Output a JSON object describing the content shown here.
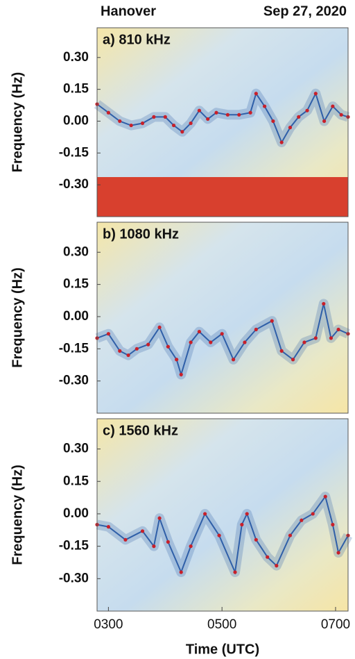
{
  "header": {
    "location": "Hanover",
    "date": "Sep 27, 2020"
  },
  "chart_data": [
    {
      "type": "line",
      "title": "a) 810 kHz",
      "ylabel": "Frequency (Hz)",
      "x": [
        2.8,
        3.0,
        3.2,
        3.4,
        3.6,
        3.8,
        4.0,
        4.15,
        4.3,
        4.45,
        4.6,
        4.75,
        4.9,
        5.1,
        5.3,
        5.5,
        5.6,
        5.75,
        5.9,
        6.05,
        6.2,
        6.35,
        6.5,
        6.65,
        6.8,
        6.95,
        7.1,
        7.22
      ],
      "values": [
        0.08,
        0.04,
        0.0,
        -0.02,
        -0.01,
        0.02,
        0.02,
        -0.02,
        -0.05,
        -0.01,
        0.05,
        0.01,
        0.04,
        0.03,
        0.03,
        0.04,
        0.13,
        0.07,
        0.0,
        -0.1,
        -0.03,
        0.02,
        0.05,
        0.13,
        0.0,
        0.07,
        0.03,
        0.02
      ],
      "color": "#2f5fa8",
      "marker_color": "#c8202a",
      "xlim": [
        2.8,
        7.22
      ],
      "ylim": [
        -0.45,
        0.44
      ],
      "yticks": [
        {
          "value": 0.3,
          "label": "0.30"
        },
        0.15,
        {
          "value": 0,
          "label": "0.00"
        },
        -0.15,
        {
          "value": -0.3,
          "label": "-0.30"
        }
      ]
    },
    {
      "type": "line",
      "title": "b) 1080 kHz",
      "ylabel": "Frequency (Hz)",
      "x": [
        2.8,
        3.0,
        3.2,
        3.35,
        3.5,
        3.7,
        3.9,
        4.05,
        4.2,
        4.28,
        4.45,
        4.6,
        4.8,
        5.0,
        5.2,
        5.4,
        5.6,
        5.88,
        6.05,
        6.25,
        6.45,
        6.65,
        6.79,
        6.92,
        7.05,
        7.22
      ],
      "values": [
        -0.1,
        -0.08,
        -0.16,
        -0.18,
        -0.15,
        -0.13,
        -0.05,
        -0.14,
        -0.2,
        -0.27,
        -0.12,
        -0.07,
        -0.12,
        -0.08,
        -0.2,
        -0.12,
        -0.06,
        -0.02,
        -0.16,
        -0.2,
        -0.12,
        -0.1,
        0.06,
        -0.1,
        -0.06,
        -0.08
      ],
      "color": "#2f5fa8",
      "marker_color": "#c8202a",
      "xlim": [
        2.8,
        7.22
      ],
      "ylim": [
        -0.45,
        0.44
      ],
      "yticks": [
        {
          "value": 0.3,
          "label": "0.30"
        },
        0.15,
        {
          "value": 0,
          "label": "0.00"
        },
        -0.15,
        {
          "value": -0.3,
          "label": "-0.30"
        }
      ]
    },
    {
      "type": "line",
      "title": "c) 1560 kHz",
      "ylabel": "Frequency (Hz)",
      "xlabel": "Time (UTC)",
      "x": [
        2.8,
        3.0,
        3.3,
        3.6,
        3.8,
        3.9,
        4.05,
        4.28,
        4.45,
        4.7,
        4.95,
        5.23,
        5.35,
        5.44,
        5.6,
        5.8,
        5.96,
        6.2,
        6.4,
        6.6,
        6.82,
        6.95,
        7.05,
        7.22
      ],
      "values": [
        -0.05,
        -0.06,
        -0.12,
        -0.08,
        -0.15,
        -0.02,
        -0.13,
        -0.27,
        -0.15,
        0.0,
        -0.1,
        -0.27,
        -0.05,
        0.0,
        -0.12,
        -0.2,
        -0.24,
        -0.1,
        -0.03,
        0.0,
        0.08,
        -0.05,
        -0.18,
        -0.1
      ],
      "color": "#2f5fa8",
      "marker_color": "#c8202a",
      "xlim": [
        2.8,
        7.22
      ],
      "ylim": [
        -0.45,
        0.44
      ],
      "yticks": [
        {
          "value": 0.3,
          "label": "0.30"
        },
        0.15,
        {
          "value": 0,
          "label": "0.00"
        },
        -0.15,
        {
          "value": -0.3,
          "label": "-0.30"
        }
      ],
      "xticks": [
        {
          "value": 3,
          "label": "0300"
        },
        {
          "value": 5,
          "label": "0500"
        },
        {
          "value": 7,
          "label": "0700"
        }
      ]
    }
  ]
}
